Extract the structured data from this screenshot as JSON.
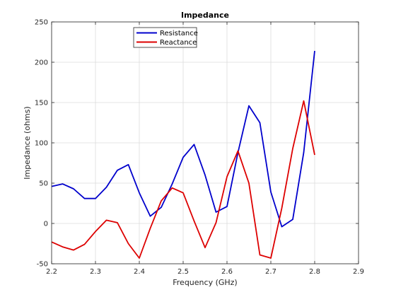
{
  "chart_data": {
    "type": "line",
    "title": "Impedance",
    "xlabel": "Frequency (GHz)",
    "ylabel": "Impedance (ohms)",
    "xlim": [
      2.2,
      2.9
    ],
    "ylim": [
      -50,
      250
    ],
    "xticks": [
      "2.2",
      "2.3",
      "2.4",
      "2.5",
      "2.6",
      "2.7",
      "2.8",
      "2.9"
    ],
    "yticks": [
      "-50",
      "0",
      "50",
      "100",
      "150",
      "200",
      "250"
    ],
    "grid": true,
    "legend_position": "top-left",
    "x": [
      2.2,
      2.225,
      2.25,
      2.275,
      2.3,
      2.325,
      2.35,
      2.375,
      2.4,
      2.425,
      2.45,
      2.475,
      2.5,
      2.525,
      2.55,
      2.575,
      2.6,
      2.625,
      2.65,
      2.675,
      2.7,
      2.725,
      2.75,
      2.775,
      2.8
    ],
    "series": [
      {
        "name": "Resistance",
        "color": "#0000cc",
        "values": [
          46,
          49,
          43,
          31,
          31,
          45,
          66,
          73,
          38,
          9,
          20,
          49,
          82,
          98,
          60,
          14,
          21,
          88,
          146,
          125,
          39,
          -4,
          5,
          88,
          214
        ]
      },
      {
        "name": "Reactance",
        "color": "#dd0000",
        "values": [
          -23,
          -29,
          -33,
          -26,
          -10,
          4,
          1,
          -25,
          -43,
          -6,
          28,
          44,
          38,
          3,
          -30,
          1,
          58,
          90,
          50,
          -39,
          -43,
          19,
          93,
          152,
          85
        ]
      }
    ]
  }
}
